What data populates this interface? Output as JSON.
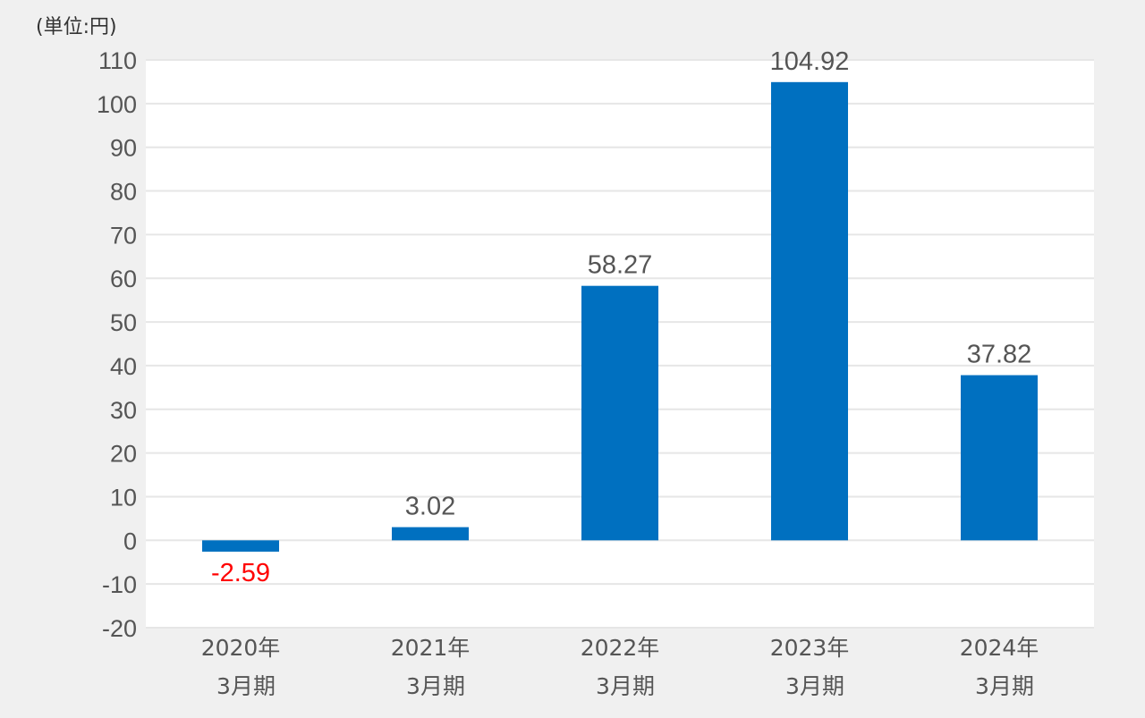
{
  "unit_label": "(単位:円)",
  "colors": {
    "background": "#f0f0f0",
    "plot_background": "#ffffff",
    "bar": "#0070c0",
    "gridline": "#e6e6e6",
    "label_positive": "#555555",
    "label_negative": "#ff0000"
  },
  "chart_data": {
    "type": "bar",
    "categories": [
      [
        "2020年",
        "3月期"
      ],
      [
        "2021年",
        "3月期"
      ],
      [
        "2022年",
        "3月期"
      ],
      [
        "2023年",
        "3月期"
      ],
      [
        "2024年",
        "3月期"
      ]
    ],
    "values": [
      -2.59,
      3.02,
      58.27,
      104.92,
      37.82
    ],
    "value_labels": [
      "-2.59",
      "3.02",
      "58.27",
      "104.92",
      "37.82"
    ],
    "ylim": [
      -20,
      110
    ],
    "y_ticks": [
      110,
      100,
      90,
      80,
      70,
      60,
      50,
      40,
      30,
      20,
      10,
      0,
      -10,
      -20
    ],
    "grid": true,
    "legend": "none",
    "title": "",
    "xlabel": "",
    "ylabel": ""
  }
}
